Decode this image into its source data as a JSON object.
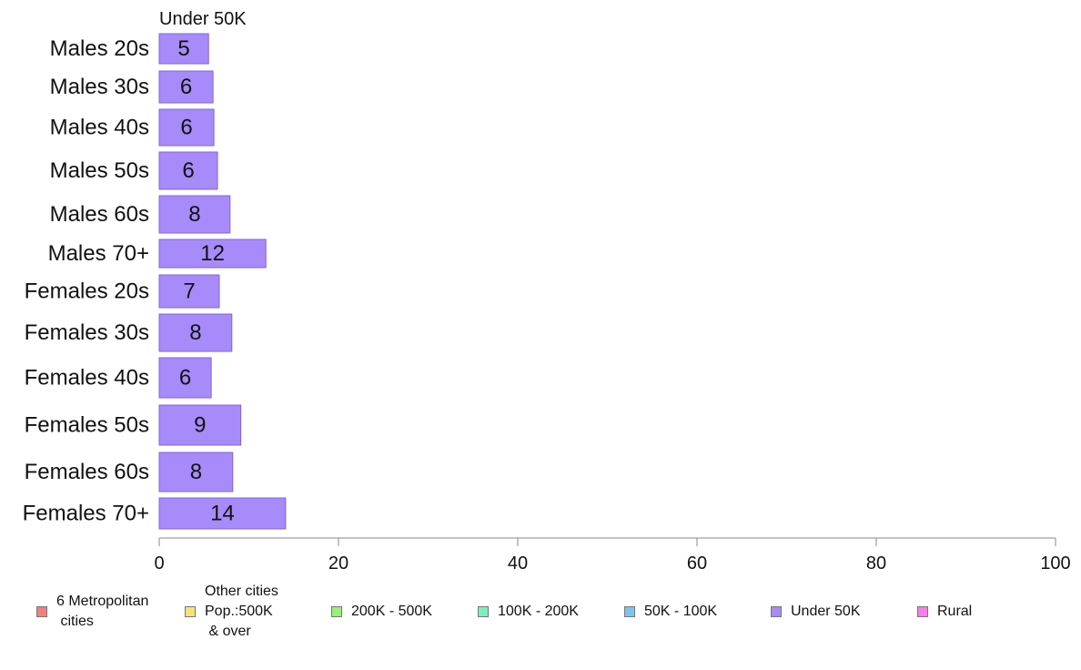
{
  "chart_data": {
    "type": "bar",
    "orientation": "horizontal",
    "title": "Under 50K",
    "categories": [
      "Males 20s",
      "Males 30s",
      "Males 40s",
      "Males 50s",
      "Males 60s",
      "Males 70+",
      "Females 20s",
      "Females 30s",
      "Females 40s",
      "Females 50s",
      "Females 60s",
      "Females 70+"
    ],
    "values": [
      5.5,
      6.0,
      6.1,
      6.5,
      7.9,
      11.9,
      6.7,
      8.1,
      5.8,
      9.1,
      8.2,
      14.1
    ],
    "value_labels": [
      "5",
      "6",
      "6",
      "6",
      "8",
      "12",
      "7",
      "8",
      "6",
      "9",
      "8",
      "14"
    ],
    "xlim": [
      0,
      100
    ],
    "xticks": [
      "0",
      "20",
      "40",
      "60",
      "80",
      "100"
    ],
    "grid": false,
    "bar_color": "#A78BFA",
    "bar_edge_color": "#8264D9",
    "legend_position": "bottom",
    "legend": [
      {
        "label": "6 Metropolitan\n cities",
        "color": "#F08080"
      },
      {
        "label": "Other cities\nPop.:500K\n & over",
        "color": "#F6E27A"
      },
      {
        "label": "200K - 500K",
        "color": "#9AF07A"
      },
      {
        "label": "100K - 200K",
        "color": "#7AF0C0"
      },
      {
        "label": "50K - 100K",
        "color": "#7CC4F2"
      },
      {
        "label": "Under 50K",
        "color": "#A78BFA"
      },
      {
        "label": "Rural",
        "color": "#F580E6"
      }
    ]
  }
}
